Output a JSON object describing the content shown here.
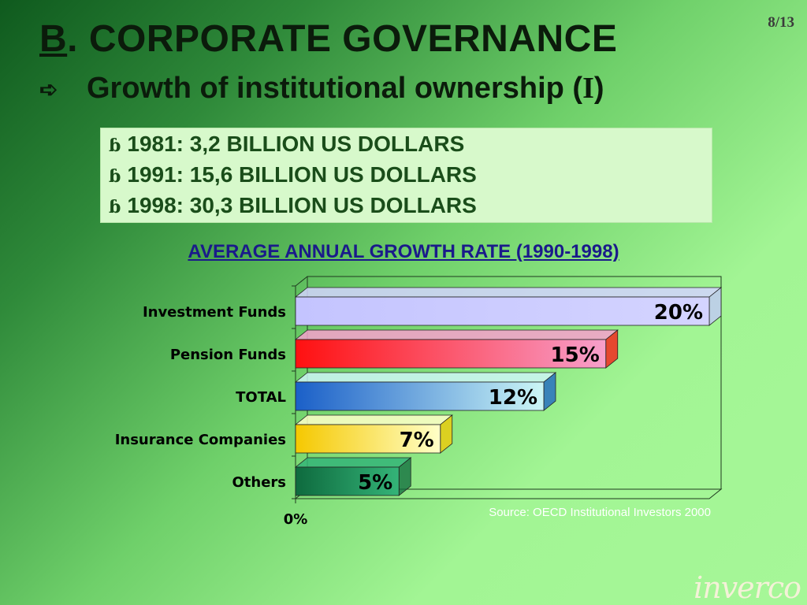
{
  "slide": {
    "page_number": "8/13",
    "title_letter": "B",
    "title_rest": ". CORPORATE GOVERNANCE",
    "subtitle_arrow": "➪",
    "subtitle_text": "Growth of institutional ownership (",
    "subtitle_roman": "I",
    "subtitle_close": ")",
    "bullet_glyph": "ɓ",
    "facts": [
      "1981: 3,2 BILLION US DOLLARS",
      "1991: 15,6 BILLION US DOLLARS",
      "1998: 30,3 BILLION US DOLLARS"
    ],
    "source": "Source: OECD Institutional Investors 2000",
    "logo": "inverco"
  },
  "chart_data": {
    "type": "bar",
    "orientation": "horizontal",
    "title": "AVERAGE ANNUAL GROWTH RATE (1990-1998)",
    "categories": [
      "Investment Funds",
      "Pension Funds",
      "TOTAL",
      "Insurance Companies",
      "Others"
    ],
    "values": [
      20,
      15,
      12,
      7,
      5
    ],
    "data_labels": [
      "20%",
      "15%",
      "12%",
      "7%",
      "5%"
    ],
    "xlim": [
      0,
      20
    ],
    "x_tick_labels": [
      "0%"
    ],
    "bar_colors": [
      [
        "#c4c4ff",
        "#d4d4ff"
      ],
      [
        "#ff1010",
        "#f7a0cc"
      ],
      [
        "#1a5fc8",
        "#ccf6f6"
      ],
      [
        "#f5c800",
        "#ffffc8"
      ],
      [
        "#0e6a3e",
        "#34b478"
      ]
    ],
    "grid": false,
    "legend": "none"
  }
}
